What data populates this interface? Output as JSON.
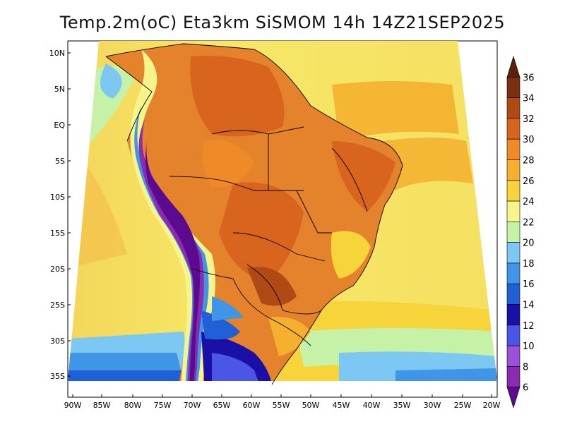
{
  "title": "Temp.2m(oC) Eta3km SiSMOM 14h 14Z21SEP2025",
  "latitude_labels": [
    "10N",
    "5N",
    "EQ",
    "5S",
    "10S",
    "15S",
    "20S",
    "25S",
    "30S",
    "35S"
  ],
  "longitude_labels": [
    "90W",
    "85W",
    "80W",
    "75W",
    "70W",
    "65W",
    "60W",
    "55W",
    "50W",
    "45W",
    "40W",
    "35W",
    "30W",
    "25W",
    "20W"
  ],
  "colorbar": {
    "labels": [
      "6",
      "8",
      "10",
      "12",
      "14",
      "16",
      "18",
      "20",
      "22",
      "24",
      "26",
      "28",
      "30",
      "32",
      "34",
      "36"
    ],
    "colors": [
      "#5b0b8f",
      "#8a2bb0",
      "#9c4fd8",
      "#4b56e6",
      "#1a10a8",
      "#1f5fd8",
      "#3f95e6",
      "#7cc8f2",
      "#c6f2a8",
      "#f6f58c",
      "#f7d43a",
      "#f5b12e",
      "#f08a28",
      "#d8641e",
      "#b04a14",
      "#7a3110",
      "#5a220a"
    ]
  },
  "legend_colors": {
    "ocean_warm": "#f6e25a",
    "ocean_cool": "#f4c84a",
    "land_hot": "#e3782a",
    "andes_cold": "#5b0b8f",
    "south_cool": "#3f95e6"
  }
}
